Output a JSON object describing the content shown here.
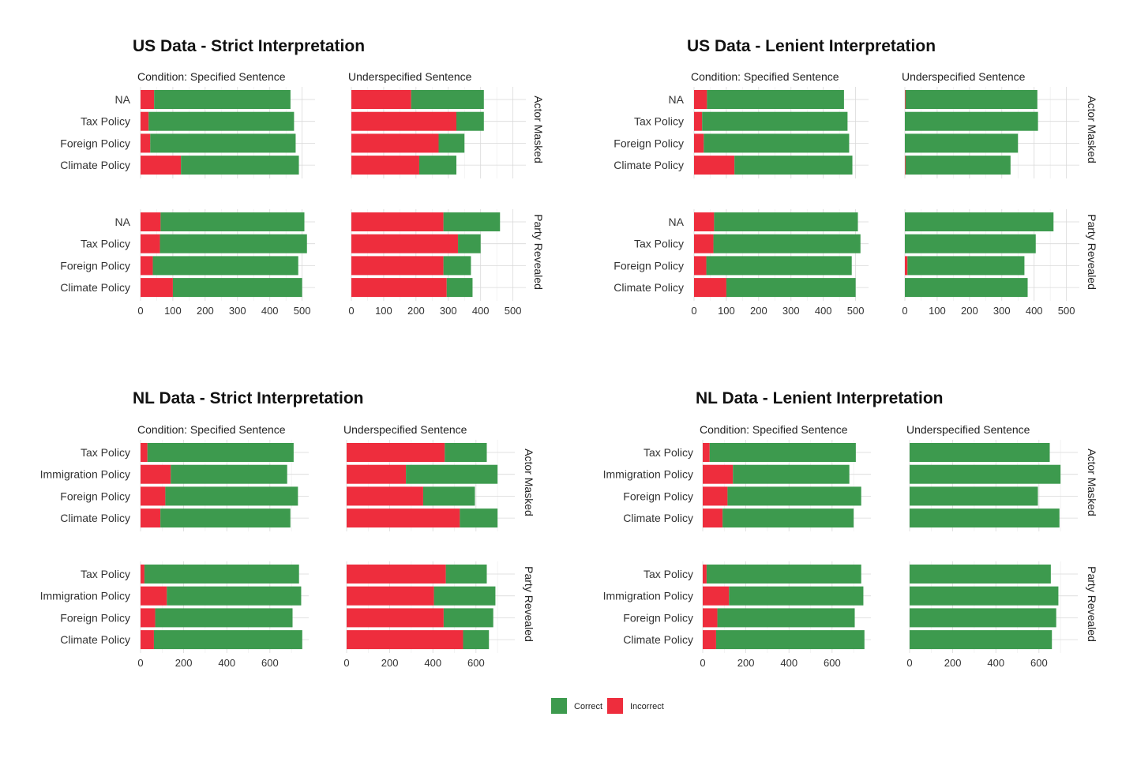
{
  "colors": {
    "correct": "#3d9a4e",
    "incorrect": "#ee2d3d",
    "grid_major": "#d9d9d9",
    "grid_minor": "#ececec"
  },
  "legend": [
    {
      "key": "correct",
      "label": "Correct",
      "color": "#3d9a4e"
    },
    {
      "key": "incorrect",
      "label": "Incorrect",
      "color": "#ee2d3d"
    }
  ],
  "chart_data": [
    {
      "type": "bar",
      "orientation": "horizontal",
      "stacked": true,
      "title": "US Data - Strict Interpretation",
      "column_facets": [
        "Condition: Specified Sentence",
        "Underspecified Sentence"
      ],
      "row_facets": [
        "Actor Masked",
        "Party Revealed"
      ],
      "categories": [
        "NA",
        "Tax Policy",
        "Foreign Policy",
        "Climate Policy"
      ],
      "xlim": [
        0,
        540
      ],
      "xticks": [
        0,
        100,
        200,
        300,
        400,
        500
      ],
      "grid": true,
      "panels": [
        {
          "col": 0,
          "row": 0,
          "incorrect": [
            42,
            25,
            30,
            125
          ],
          "correct": [
            422,
            450,
            450,
            365
          ]
        },
        {
          "col": 1,
          "row": 0,
          "incorrect": [
            185,
            325,
            270,
            210
          ],
          "correct": [
            225,
            85,
            80,
            115
          ]
        },
        {
          "col": 0,
          "row": 1,
          "incorrect": [
            62,
            60,
            38,
            100
          ],
          "correct": [
            445,
            455,
            450,
            400
          ]
        },
        {
          "col": 1,
          "row": 1,
          "incorrect": [
            285,
            330,
            285,
            295
          ],
          "correct": [
            175,
            70,
            85,
            80
          ]
        }
      ]
    },
    {
      "type": "bar",
      "orientation": "horizontal",
      "stacked": true,
      "title": "US Data - Lenient Interpretation",
      "column_facets": [
        "Condition: Specified Sentence",
        "Underspecified Sentence"
      ],
      "row_facets": [
        "Actor Masked",
        "Party Revealed"
      ],
      "categories": [
        "NA",
        "Tax Policy",
        "Foreign Policy",
        "Climate Policy"
      ],
      "xlim": [
        0,
        540
      ],
      "xticks": [
        0,
        100,
        200,
        300,
        400,
        500
      ],
      "grid": true,
      "panels": [
        {
          "col": 0,
          "row": 0,
          "incorrect": [
            40,
            25,
            30,
            125
          ],
          "correct": [
            424,
            450,
            450,
            365
          ]
        },
        {
          "col": 1,
          "row": 0,
          "incorrect": [
            2,
            0,
            0,
            2
          ],
          "correct": [
            408,
            412,
            350,
            325
          ]
        },
        {
          "col": 0,
          "row": 1,
          "incorrect": [
            62,
            60,
            38,
            100
          ],
          "correct": [
            445,
            455,
            450,
            400
          ]
        },
        {
          "col": 1,
          "row": 1,
          "incorrect": [
            0,
            0,
            8,
            0
          ],
          "correct": [
            460,
            405,
            362,
            380
          ]
        }
      ]
    },
    {
      "type": "bar",
      "orientation": "horizontal",
      "stacked": true,
      "title": "NL Data - Strict Interpretation",
      "column_facets": [
        "Condition: Specified Sentence",
        "Underspecified Sentence"
      ],
      "row_facets": [
        "Actor Masked",
        "Party Revealed"
      ],
      "categories": [
        "Tax Policy",
        "Immigration Policy",
        "Foreign Policy",
        "Climate Policy"
      ],
      "xlim": [
        0,
        780
      ],
      "xticks": [
        0,
        200,
        400,
        600
      ],
      "grid": true,
      "panels": [
        {
          "col": 0,
          "row": 0,
          "incorrect": [
            32,
            140,
            115,
            92
          ],
          "correct": [
            678,
            540,
            615,
            603
          ]
        },
        {
          "col": 1,
          "row": 0,
          "incorrect": [
            455,
            275,
            355,
            525
          ],
          "correct": [
            195,
            425,
            240,
            175
          ]
        },
        {
          "col": 0,
          "row": 1,
          "incorrect": [
            18,
            122,
            68,
            62
          ],
          "correct": [
            717,
            623,
            637,
            688
          ]
        },
        {
          "col": 1,
          "row": 1,
          "incorrect": [
            460,
            405,
            450,
            540
          ],
          "correct": [
            190,
            285,
            230,
            120
          ]
        }
      ]
    },
    {
      "type": "bar",
      "orientation": "horizontal",
      "stacked": true,
      "title": "NL Data - Lenient Interpretation",
      "column_facets": [
        "Condition: Specified Sentence",
        "Underspecified Sentence"
      ],
      "row_facets": [
        "Actor Masked",
        "Party Revealed"
      ],
      "categories": [
        "Tax Policy",
        "Immigration Policy",
        "Foreign Policy",
        "Climate Policy"
      ],
      "xlim": [
        0,
        780
      ],
      "xticks": [
        0,
        200,
        400,
        600
      ],
      "grid": true,
      "panels": [
        {
          "col": 0,
          "row": 0,
          "incorrect": [
            32,
            140,
            115,
            92
          ],
          "correct": [
            678,
            540,
            620,
            608
          ]
        },
        {
          "col": 1,
          "row": 0,
          "incorrect": [
            0,
            0,
            0,
            0
          ],
          "correct": [
            650,
            700,
            595,
            695
          ]
        },
        {
          "col": 0,
          "row": 1,
          "incorrect": [
            18,
            122,
            68,
            62
          ],
          "correct": [
            717,
            623,
            637,
            688
          ]
        },
        {
          "col": 1,
          "row": 1,
          "incorrect": [
            0,
            0,
            0,
            0
          ],
          "correct": [
            655,
            690,
            680,
            660
          ]
        }
      ]
    }
  ]
}
